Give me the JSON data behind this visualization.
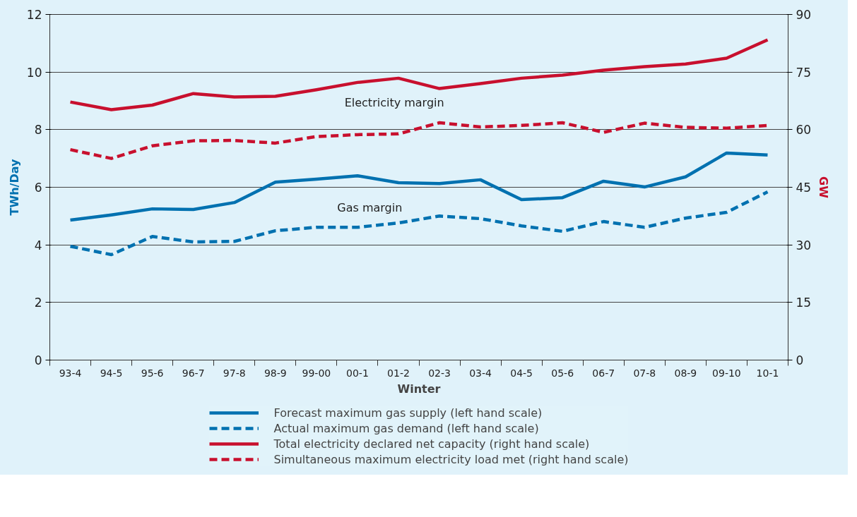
{
  "chart_data": {
    "type": "line",
    "xlabel": "Winter",
    "ylabel": "TWh/Day",
    "y2label": "GW",
    "categories": [
      "93-4",
      "94-5",
      "95-6",
      "96-7",
      "97-8",
      "98-9",
      "99-00",
      "00-1",
      "01-2",
      "02-3",
      "03-4",
      "04-5",
      "05-6",
      "06-7",
      "07-8",
      "08-9",
      "09-10",
      "10-1"
    ],
    "ylim": [
      0,
      12
    ],
    "yticks": [
      0,
      2,
      4,
      6,
      8,
      10,
      12
    ],
    "y2lim": [
      0,
      90
    ],
    "y2ticks": [
      0,
      15,
      30,
      45,
      60,
      75,
      90
    ],
    "grid": "y",
    "legend": "bottom",
    "series": [
      {
        "name": "Forecast maximum gas supply (left hand scale)",
        "color": "#0071b0",
        "line_style": "solid",
        "values": [
          4.86,
          5.04,
          5.25,
          5.23,
          5.47,
          6.18,
          6.28,
          6.4,
          6.16,
          6.13,
          6.26,
          5.57,
          5.64,
          6.21,
          6.01,
          6.36,
          7.19,
          7.12
        ]
      },
      {
        "name": "Actual maximum gas demand (left hand scale)",
        "color": "#0071b0",
        "line_style": "dashed",
        "values": [
          3.95,
          3.66,
          4.29,
          4.1,
          4.12,
          4.49,
          4.61,
          4.61,
          4.76,
          5.0,
          4.91,
          4.66,
          4.47,
          4.81,
          4.61,
          4.93,
          5.13,
          5.84
        ]
      },
      {
        "name": "Total electricity declared net capacity (right hand scale)",
        "color": "#c8102e",
        "line_style": "solid",
        "axis": "y2",
        "values": [
          67.2,
          65.2,
          66.4,
          69.4,
          68.5,
          68.7,
          70.4,
          72.3,
          73.4,
          70.7,
          72.0,
          73.4,
          74.2,
          75.5,
          76.4,
          77.1,
          78.6,
          83.4
        ]
      },
      {
        "name": "Simultaneous maximum electricity load met (right hand scale)",
        "color": "#c8102e",
        "line_style": "dashed",
        "axis": "y2",
        "values": [
          54.8,
          52.5,
          55.8,
          57.1,
          57.2,
          56.5,
          58.2,
          58.7,
          58.9,
          61.8,
          60.7,
          61.1,
          61.8,
          59.3,
          61.7,
          60.6,
          60.4,
          61.1
        ]
      }
    ],
    "annotations": [
      "Electricity margin",
      "Gas margin"
    ]
  }
}
